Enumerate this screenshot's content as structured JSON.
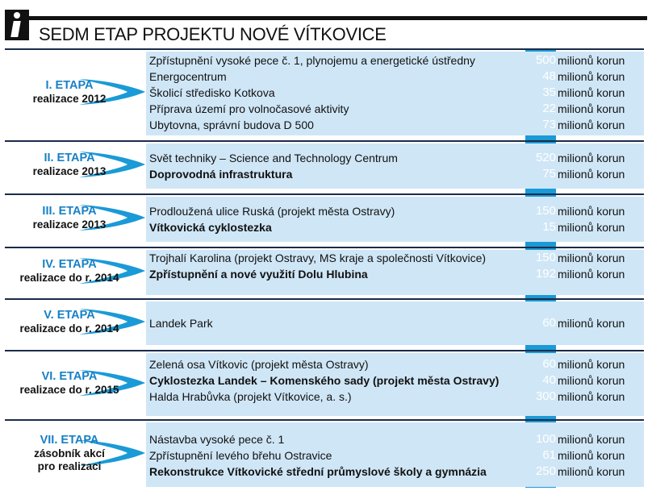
{
  "header": {
    "title": "SEDM ETAP PROJEKTU NOVÉ VÍTKOVICE",
    "icon": "info-icon"
  },
  "colors": {
    "accent": "#1a9ad6",
    "etapa_text": "#1780c6",
    "content_bg": "#cfe6f6",
    "rule": "#1b2b4a"
  },
  "unit": "milionů korun",
  "etapy": [
    {
      "name": "I. ETAPA",
      "realizace": [
        "realizace 2012"
      ],
      "rows": [
        {
          "desc": "Zpřístupnění vysoké pece č. 1, plynojemu a energetické ústředny",
          "value": "500"
        },
        {
          "desc": "Energocentrum",
          "value": "48"
        },
        {
          "desc": "Školicí středisko Kotkova",
          "value": "35"
        },
        {
          "desc": "Příprava území pro volnočasové aktivity",
          "value": "22"
        },
        {
          "desc": "Ubytovna, správní budova D 500",
          "value": "73"
        }
      ]
    },
    {
      "name": "II. ETAPA",
      "realizace": [
        "realizace 2013"
      ],
      "rows": [
        {
          "desc": "Svět techniky – Science and Technology Centrum",
          "value": "520"
        },
        {
          "desc": "Doprovodná infrastruktura",
          "value": "75",
          "bold": true
        }
      ]
    },
    {
      "name": "III. ETAPA",
      "realizace": [
        "realizace 2013"
      ],
      "rows": [
        {
          "desc": "Prodloužená ulice Ruská (projekt města Ostravy)",
          "value": "150"
        },
        {
          "desc": "Vítkovická cyklostezka",
          "value": "15",
          "bold": true
        }
      ]
    },
    {
      "name": "IV. ETAPA",
      "realizace": [
        "realizace do r. 2014"
      ],
      "rows": [
        {
          "desc": "Trojhalí Karolina (projekt Ostravy, MS kraje a společnosti Vítkovice)",
          "value": "150"
        },
        {
          "desc": "Zpřístupnění a nové využití Dolu Hlubina",
          "value": "192",
          "bold": true
        }
      ]
    },
    {
      "name": "V. ETAPA",
      "realizace": [
        "realizace do r. 2014"
      ],
      "rows": [
        {
          "desc": "Landek Park",
          "value": "60"
        }
      ]
    },
    {
      "name": "VI. ETAPA",
      "realizace": [
        "realizace do r. 2015"
      ],
      "rows": [
        {
          "desc": "Zelená osa Vítkovic (projekt města Ostravy)",
          "value": "60"
        },
        {
          "desc": "Cyklostezka Landek – Komenského sady (projekt města Ostravy)",
          "value": "40",
          "bold": true
        },
        {
          "desc": "Halda Hrabůvka (projekt Vítkovice, a. s.)",
          "value": "300"
        }
      ]
    },
    {
      "name": "VII. ETAPA",
      "realizace": [
        "zásobník akcí",
        "pro realizaci"
      ],
      "rows": [
        {
          "desc": "Nástavba vysoké pece č. 1",
          "value": "100"
        },
        {
          "desc": "Zpřístupnění levého břehu Ostravice",
          "value": "61"
        },
        {
          "desc": "Rekonstrukce Vítkovické střední průmyslové školy a gymnázia",
          "value": "250",
          "bold": true
        }
      ]
    }
  ]
}
